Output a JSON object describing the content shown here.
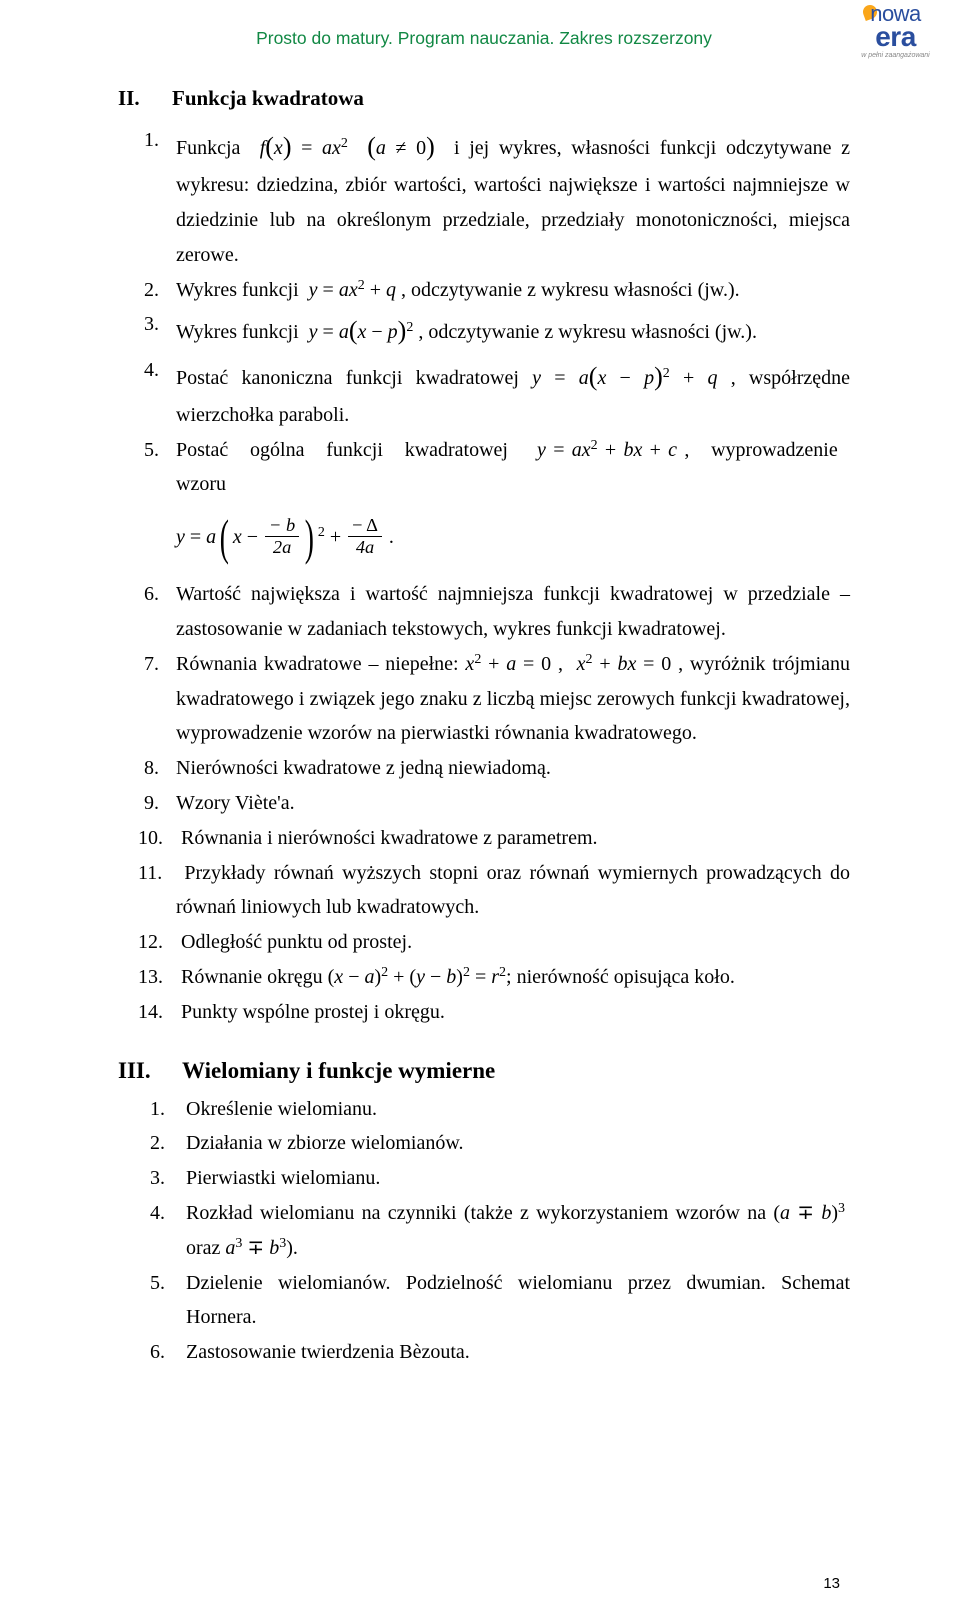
{
  "header": {
    "breadcrumb": "Prosto do matury. Program nauczania. Zakres rozszerzony",
    "logo_top": "nowa",
    "logo_bottom": "era",
    "logo_sub": "w pełni zaangażowani"
  },
  "section2": {
    "roman": "II.",
    "title": "Funkcja kwadratowa",
    "items": [
      "Funkcja f(x) = ax² (a ≠ 0) i jej wykres, własności funkcji odczytywane z wykresu: dziedzina, zbiór wartości, wartości największe i wartości najmniejsze w dziedzinie lub na określonym przedziale, przedziały monotoniczności, miejsca zerowe.",
      "Wykres funkcji y = ax² + q , odczytywanie z wykresu własności (jw.).",
      "Wykres funkcji y = a(x − p)² , odczytywanie z wykresu własności (jw.).",
      "Postać kanoniczna funkcji kwadratowej y = a(x − p)² + q , współrzędne wierzchołka paraboli.",
      "Postać ogólna funkcji kwadratowej y = ax² + bx + c , wyprowadzenie wzoru",
      "Wartość największa i wartość najmniejsza funkcji kwadratowej w przedziale – zastosowanie w zadaniach tekstowych, wykres funkcji kwadratowej.",
      "Równania kwadratowe – niepełne: x² + a = 0 , x² + bx = 0 , wyróżnik trójmianu kwadratowego i związek jego znaku z liczbą miejsc zerowych funkcji kwadratowej, wyprowadzenie wzorów na pierwiastki równania kwadratowego.",
      "Nierówności kwadratowe z jedną niewiadomą.",
      "Wzory Viète'a.",
      "Równania i nierówności kwadratowe z parametrem.",
      "Przykłady równań wyższych stopni oraz równań wymiernych prowadzących do równań liniowych lub kwadratowych.",
      "Odległość punktu od prostej.",
      "Równanie okręgu (x − a)² + (y − b)² = r²; nierówność opisująca koło.",
      "Punkty wspólne prostej i okręgu."
    ],
    "formula_y": "y",
    "formula_eq": "=",
    "formula_a": "a",
    "formula_x": "x",
    "formula_minus": "−",
    "formula_b": "− b",
    "formula_2a": "2a",
    "formula_plus": "+",
    "formula_delta": "− Δ",
    "formula_4a": "4a",
    "formula_dot": "."
  },
  "section3": {
    "roman": "III.",
    "title": "Wielomiany i funkcje wymierne",
    "items": [
      "Określenie wielomianu.",
      "Działania w zbiorze wielomianów.",
      "Pierwiastki wielomianu.",
      "Rozkład wielomianu na czynniki (także z wykorzystaniem wzorów na (a ∓ b)³ oraz a³ ∓ b³).",
      "Dzielenie wielomianów. Podzielność wielomianu przez dwumian. Schemat Hornera.",
      "Zastosowanie twierdzenia Bèzouta."
    ]
  },
  "pagenum": "13"
}
